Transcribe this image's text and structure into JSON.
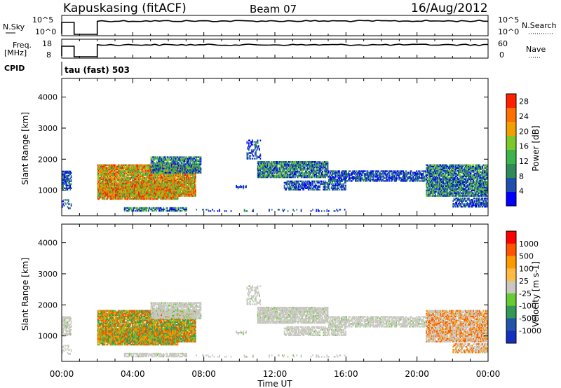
{
  "header": {
    "station": "Kapuskasing (fitACF)",
    "beam": "Beam 07",
    "date": "16/Aug/2012"
  },
  "panels": {
    "nsky_label": "N.Sky",
    "nsearch_label": "N.Search",
    "freq_label_1": "Freq.",
    "freq_label_2": "[MHz]",
    "nave_label": "Nave",
    "cpid_label": "CPID",
    "cpid_value": "tau (fast) 503",
    "nsky_ticks": [
      "10^5",
      "10^0"
    ],
    "nsearch_ticks": [
      "10^5",
      "10^0"
    ],
    "freq_ticks": [
      "18",
      "8"
    ],
    "nave_ticks": [
      "60",
      "0"
    ]
  },
  "colors": {
    "power": [
      "#0000ff",
      "#1e4fb0",
      "#2e8b57",
      "#3cb44b",
      "#7cc82a",
      "#f0a000",
      "#ff7000",
      "#ff2000"
    ],
    "velocity": [
      "#ff0000",
      "#ff5500",
      "#ff9900",
      "#ffbb44",
      "#c8c8c0",
      "#66cc33",
      "#339955",
      "#2255aa",
      "#1530c0"
    ]
  },
  "chart_data": [
    {
      "type": "heatmap",
      "name": "power",
      "xlabel": "Time UT",
      "ylabel": "Slant Range [km]",
      "xlim": [
        0,
        24
      ],
      "ylim": [
        180,
        4600
      ],
      "yticks": [
        1000,
        2000,
        3000,
        4000
      ],
      "xticks": [
        "00:00",
        "04:00",
        "08:00",
        "12:00",
        "16:00",
        "20:00",
        "00:00"
      ],
      "colorbar_label": "Power [dB]",
      "colorbar_ticks": [
        "4",
        "8",
        "12",
        "16",
        "20",
        "24",
        "28"
      ],
      "colorbar_range": [
        0,
        30
      ]
    },
    {
      "type": "heatmap",
      "name": "velocity",
      "xlabel": "Time UT",
      "ylabel": "Slant Range [km]",
      "xlim": [
        0,
        24
      ],
      "ylim": [
        180,
        4600
      ],
      "yticks": [
        1000,
        2000,
        3000,
        4000
      ],
      "xticks": [
        "00:00",
        "04:00",
        "08:00",
        "12:00",
        "16:00",
        "20:00",
        "00:00"
      ],
      "colorbar_label": "Velocity [m s-1]",
      "colorbar_ticks": [
        "1000",
        "500",
        "100",
        "25",
        "-25",
        "-100",
        "-500",
        "-1000"
      ]
    }
  ]
}
